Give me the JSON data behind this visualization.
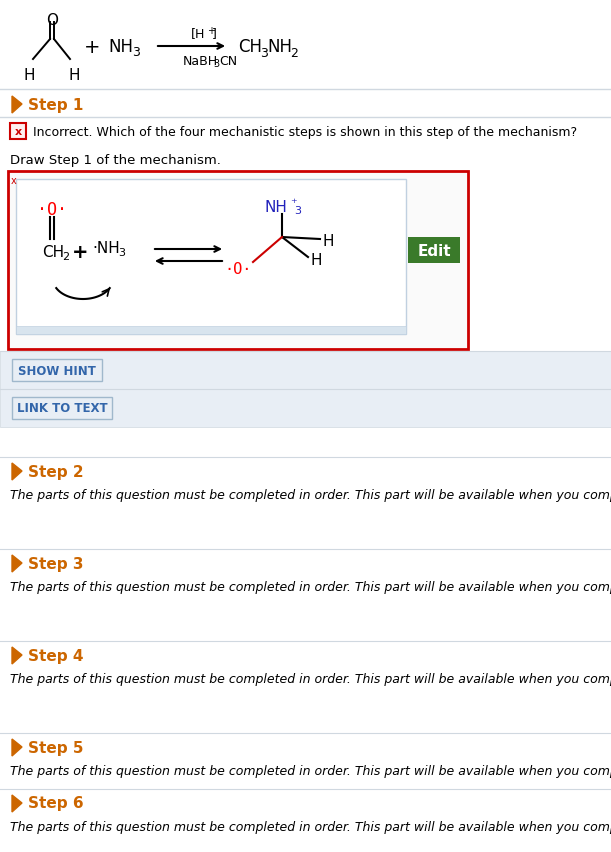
{
  "bg_color": "#ffffff",
  "step1_color": "#cc6600",
  "incorrect_text": "Incorrect. Which of the four mechanistic steps is shown in this step of the mechanism?",
  "draw_text": "Draw Step 1 of the mechanism.",
  "show_hint_text": "SHOW HINT",
  "link_to_text": "LINK TO TEXT",
  "steps": [
    {
      "label": "Step 2"
    },
    {
      "label": "Step 3"
    },
    {
      "label": "Step 4"
    },
    {
      "label": "Step 5"
    },
    {
      "label": "Step 6"
    }
  ],
  "step_locked_text": "The parts of this question must be completed in order. This part will be available when you complete the part above.",
  "edit_btn_color": "#3a7a2a",
  "edit_btn_text": "Edit",
  "edit_btn_text_color": "#ffffff",
  "box_border_color": "#cc0000",
  "inner_box_border": "#c0d0e0",
  "button_bg": "#e8eef5",
  "button_border": "#a0b8cc",
  "button_text_color": "#3366aa",
  "section_bg": "#e8eef5",
  "separator_color": "#d0d8e0"
}
